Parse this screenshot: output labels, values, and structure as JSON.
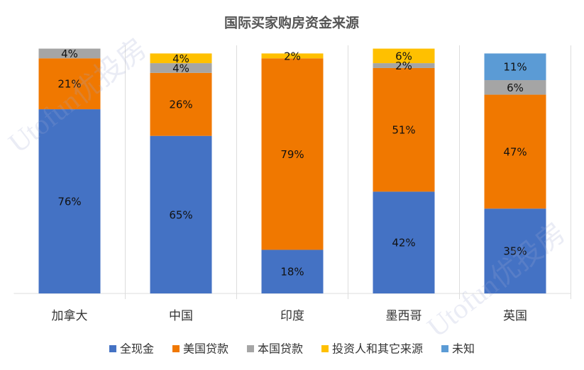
{
  "chart_data": {
    "type": "stacked_bar",
    "title": "国际买家购房资金来源",
    "watermark": "Utofun优投房",
    "categories": [
      "加拿大",
      "中国",
      "印度",
      "墨西哥",
      "英国"
    ],
    "ylim": [
      0,
      100
    ],
    "series": [
      {
        "name": "全现金",
        "color": "#4472c4",
        "values": [
          76,
          65,
          18,
          42,
          35
        ],
        "value_labels": [
          "76%",
          "65%",
          "18%",
          "42%",
          "35%"
        ]
      },
      {
        "name": "美国贷款",
        "color": "#f07800",
        "values": [
          21,
          26,
          79,
          51,
          47
        ],
        "value_labels": [
          "21%",
          "26%",
          "79%",
          "51%",
          "47%"
        ]
      },
      {
        "name": "本国贷款",
        "color": "#a5a5a5",
        "values": [
          4,
          4,
          null,
          2,
          6
        ],
        "value_labels": [
          "4%",
          "4%",
          null,
          "2%",
          "6%"
        ]
      },
      {
        "name": "投资人和其它来源",
        "color": "#ffc000",
        "values": [
          null,
          4,
          2,
          6,
          null
        ],
        "value_labels": [
          null,
          "4%",
          "2%",
          "6%",
          null
        ]
      },
      {
        "name": "未知",
        "color": "#5b9bd5",
        "values": [
          null,
          null,
          null,
          null,
          11
        ],
        "value_labels": [
          null,
          null,
          null,
          null,
          "11%"
        ]
      }
    ]
  }
}
